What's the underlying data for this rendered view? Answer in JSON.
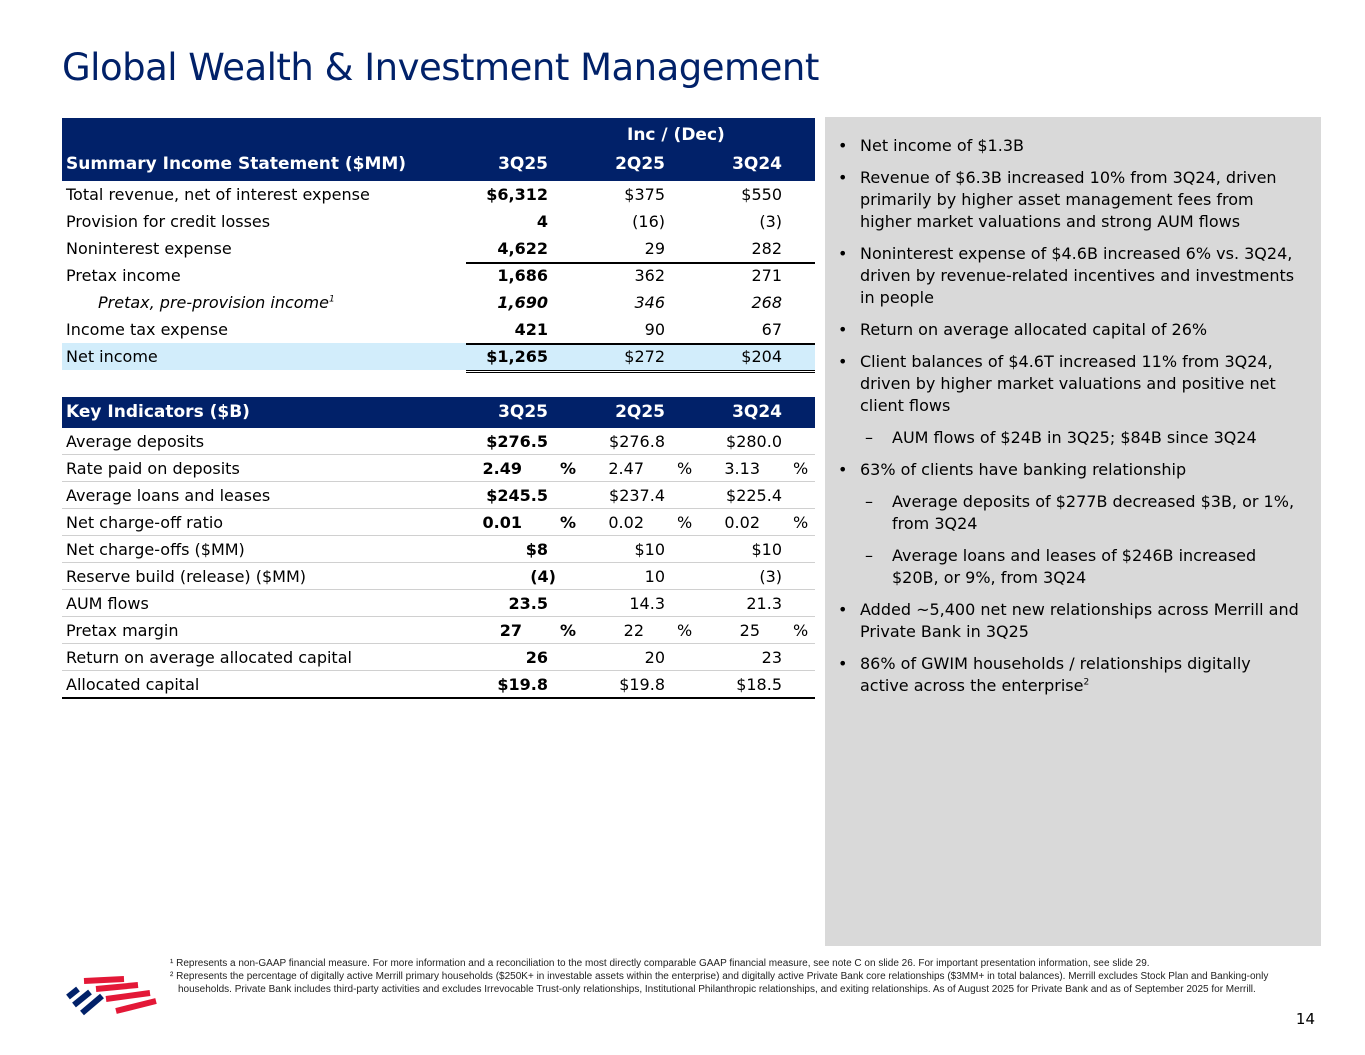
{
  "title": "Global Wealth & Investment Management",
  "income": {
    "group_header": "Inc / (Dec)",
    "header": [
      "Summary Income Statement ($MM)",
      "3Q25",
      "2Q25",
      "3Q24"
    ],
    "rows": [
      {
        "label": "Total revenue, net of interest expense",
        "v": [
          "$6,312",
          "$375",
          "$550"
        ]
      },
      {
        "label": "Provision for credit losses",
        "v": [
          "4",
          "(16)",
          "(3)"
        ]
      },
      {
        "label": "Noninterest expense",
        "v": [
          "4,622",
          "29",
          "282"
        ]
      },
      {
        "label": "Pretax income",
        "v": [
          "1,686",
          "362",
          "271"
        ]
      },
      {
        "label": "Pretax, pre-provision income",
        "sup": "1",
        "v": [
          "1,690",
          "346",
          "268"
        ]
      },
      {
        "label": "Income tax expense",
        "v": [
          "421",
          "90",
          "67"
        ]
      },
      {
        "label": "Net income",
        "v": [
          "$1,265",
          "$272",
          "$204"
        ]
      }
    ]
  },
  "key": {
    "header": [
      "Key Indicators ($B)",
      "3Q25",
      "2Q25",
      "3Q24"
    ],
    "pct": "%",
    "rows": [
      {
        "label": "Average deposits",
        "v": [
          "$276.5",
          "$276.8",
          "$280.0"
        ]
      },
      {
        "label": "Rate paid on deposits",
        "v": [
          "2.49",
          "2.47",
          "3.13"
        ],
        "pct": true
      },
      {
        "label": "Average loans and leases",
        "v": [
          "$245.5",
          "$237.4",
          "$225.4"
        ]
      },
      {
        "label": "Net charge-off ratio",
        "v": [
          "0.01",
          "0.02",
          "0.02"
        ],
        "pct": true
      },
      {
        "label": "Net charge-offs ($MM)",
        "v": [
          "$8",
          "$10",
          "$10"
        ]
      },
      {
        "label": "Reserve build (release) ($MM)",
        "v": [
          "(4)",
          "10",
          "(3)"
        ]
      },
      {
        "label": "AUM flows",
        "v": [
          "23.5",
          "14.3",
          "21.3"
        ]
      },
      {
        "label": "Pretax margin",
        "v": [
          "27",
          "22",
          "25"
        ],
        "pct": true
      },
      {
        "label": "Return on average allocated capital",
        "v": [
          "26",
          "20",
          "23"
        ]
      },
      {
        "label": "Allocated capital",
        "v": [
          "$19.8",
          "$19.8",
          "$18.5"
        ]
      }
    ]
  },
  "bullets": [
    {
      "t": "Net income of $1.3B",
      "m": "•"
    },
    {
      "t": "Revenue of $6.3B increased 10% from 3Q24, driven primarily by higher asset management fees from higher market valuations and strong AUM flows",
      "m": "•"
    },
    {
      "t": "Noninterest expense of $4.6B increased 6% vs. 3Q24, driven by revenue-related incentives and investments in people",
      "m": "•"
    },
    {
      "t": "Return on average allocated capital of 26%",
      "m": "•"
    },
    {
      "t": "Client balances of $4.6T increased 11% from 3Q24, driven by higher market valuations and positive net client flows",
      "m": "•"
    },
    {
      "t": "AUM flows of $24B in 3Q25; $84B since 3Q24",
      "m": "–",
      "sub": true
    },
    {
      "t": "63% of clients have banking relationship",
      "m": "•"
    },
    {
      "t": "Average deposits of $277B decreased $3B, or 1%, from 3Q24",
      "m": "–",
      "sub": true
    },
    {
      "t": "Average loans and leases of $246B increased $20B, or 9%, from 3Q24",
      "m": "–",
      "sub": true
    },
    {
      "t": "Added ~5,400 net new relationships across Merrill and Private Bank in 3Q25",
      "m": "•"
    },
    {
      "t": "86% of GWIM households / relationships digitally active across the enterprise",
      "sup": "2",
      "m": "•"
    }
  ],
  "footnotes": [
    "¹ Represents a non-GAAP financial measure. For more information and a reconciliation to the most directly comparable GAAP financial measure, see note C on slide 26. For important presentation information, see slide 29.",
    "² Represents the percentage of digitally active Merrill primary households ($250K+ in investable assets within the enterprise) and digitally active Private Bank core relationships ($3MM+ in total balances). Merrill excludes Stock Plan and Banking-only households. Private Bank includes third-party activities and excludes Irrevocable Trust-only relationships, Institutional Philanthropic relationships, and exiting relationships. As of August 2025 for Private Bank and as of September 2025 for Merrill."
  ],
  "page_number": "14",
  "colors": {
    "navy": "#012169",
    "red": "#e31837",
    "highlight": "#d2edfb",
    "panel": "#d9d9d9"
  }
}
